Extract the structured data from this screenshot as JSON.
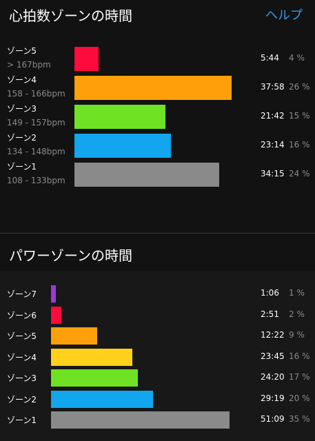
{
  "heart_rate_section": {
    "title": "心拍数ゾーンの時間",
    "help_label": "ヘルプ",
    "zones": [
      {
        "label": "ゾーン5",
        "range": "> 167bpm",
        "time": "5:44",
        "percent": "4 %",
        "value": 4,
        "color": "#ff0a3c"
      },
      {
        "label": "ゾーン4",
        "range": "158 - 166bpm",
        "time": "37:58",
        "percent": "26 %",
        "value": 26,
        "color": "#ff9f0a"
      },
      {
        "label": "ゾーン3",
        "range": "149 - 157bpm",
        "time": "21:42",
        "percent": "15 %",
        "value": 15,
        "color": "#6fe223"
      },
      {
        "label": "ゾーン2",
        "range": "134 - 148bpm",
        "time": "23:14",
        "percent": "16 %",
        "value": 16,
        "color": "#11a6ee"
      },
      {
        "label": "ゾーン1",
        "range": "108 - 133bpm",
        "time": "34:15",
        "percent": "24 %",
        "value": 24,
        "color": "#8a8a8a"
      }
    ]
  },
  "power_section": {
    "title": "パワーゾーンの時間",
    "zones": [
      {
        "label": "ゾーン7",
        "time": "1:06",
        "percent": "1 %",
        "value": 1,
        "color": "#9b3bd6"
      },
      {
        "label": "ゾーン6",
        "time": "2:51",
        "percent": "2 %",
        "value": 2,
        "color": "#ff0a3c"
      },
      {
        "label": "ゾーン5",
        "time": "12:22",
        "percent": "9 %",
        "value": 9,
        "color": "#ff9f0a"
      },
      {
        "label": "ゾーン4",
        "time": "23:45",
        "percent": "16 %",
        "value": 16,
        "color": "#ffd11a"
      },
      {
        "label": "ゾーン3",
        "time": "24:20",
        "percent": "17 %",
        "value": 17,
        "color": "#6fe223"
      },
      {
        "label": "ゾーン2",
        "time": "29:19",
        "percent": "20 %",
        "value": 20,
        "color": "#11a6ee"
      },
      {
        "label": "ゾーン1",
        "time": "51:09",
        "percent": "35 %",
        "value": 35,
        "color": "#8a8a8a"
      }
    ]
  }
}
